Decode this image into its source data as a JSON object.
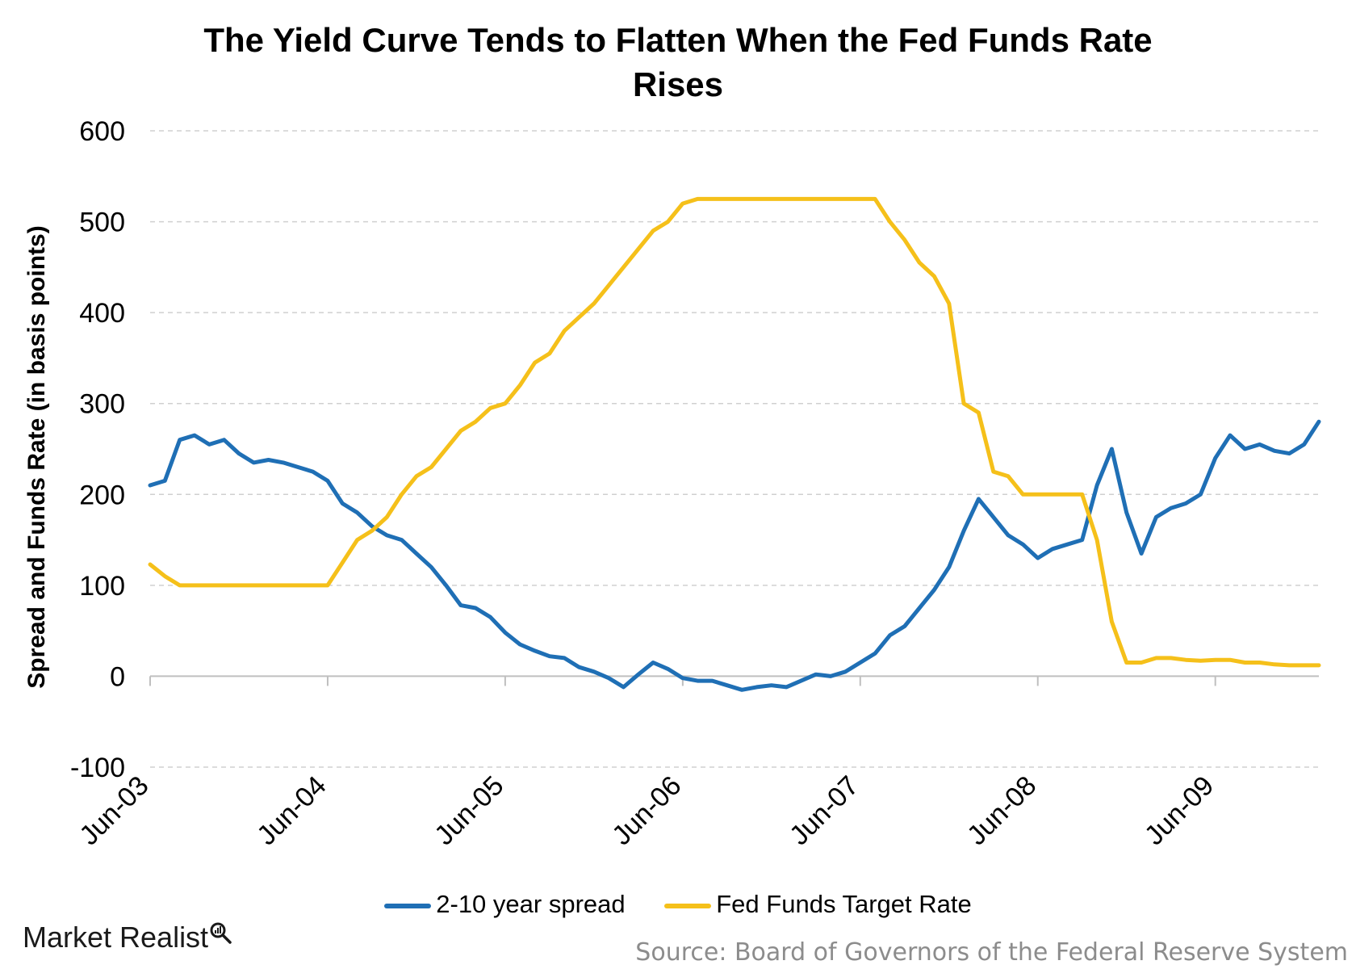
{
  "chart_data": {
    "type": "line",
    "title_lines": [
      "The Yield Curve Tends to Flatten When the Fed Funds Rate",
      "Rises"
    ],
    "ylabel": "Spread and Funds Rate (in basis points)",
    "xlabel": "",
    "y_ticks": [
      "600",
      "500",
      "400",
      "300",
      "200",
      "100",
      "0",
      "-100"
    ],
    "ylim": [
      -100,
      600
    ],
    "x_ticks": [
      "Jun-03",
      "Jun-04",
      "Jun-05",
      "Jun-06",
      "Jun-07",
      "Jun-08",
      "Jun-09"
    ],
    "x_tick_dates": [
      "2003-06",
      "2004-06",
      "2005-06",
      "2006-06",
      "2007-06",
      "2008-06",
      "2009-06"
    ],
    "xlim": [
      "2003-06",
      "2010-01"
    ],
    "grid": "horizontal dashed",
    "legend_position": "bottom",
    "series": [
      {
        "name": "2-10 year spread",
        "color": "#1f6fb5",
        "points": [
          [
            "2003-06",
            210
          ],
          [
            "2003-07",
            215
          ],
          [
            "2003-08",
            260
          ],
          [
            "2003-09",
            265
          ],
          [
            "2003-10",
            255
          ],
          [
            "2003-11",
            260
          ],
          [
            "2003-12",
            245
          ],
          [
            "2004-01",
            235
          ],
          [
            "2004-02",
            238
          ],
          [
            "2004-03",
            235
          ],
          [
            "2004-04",
            230
          ],
          [
            "2004-05",
            225
          ],
          [
            "2004-06",
            215
          ],
          [
            "2004-07",
            190
          ],
          [
            "2004-08",
            180
          ],
          [
            "2004-09",
            165
          ],
          [
            "2004-10",
            155
          ],
          [
            "2004-11",
            150
          ],
          [
            "2004-12",
            135
          ],
          [
            "2005-01",
            120
          ],
          [
            "2005-02",
            100
          ],
          [
            "2005-03",
            78
          ],
          [
            "2005-04",
            75
          ],
          [
            "2005-05",
            65
          ],
          [
            "2005-06",
            48
          ],
          [
            "2005-07",
            35
          ],
          [
            "2005-08",
            28
          ],
          [
            "2005-09",
            22
          ],
          [
            "2005-10",
            20
          ],
          [
            "2005-11",
            10
          ],
          [
            "2005-12",
            5
          ],
          [
            "2006-01",
            -2
          ],
          [
            "2006-02",
            -12
          ],
          [
            "2006-03",
            2
          ],
          [
            "2006-04",
            15
          ],
          [
            "2006-05",
            8
          ],
          [
            "2006-06",
            -2
          ],
          [
            "2006-07",
            -5
          ],
          [
            "2006-08",
            -5
          ],
          [
            "2006-09",
            -10
          ],
          [
            "2006-10",
            -15
          ],
          [
            "2006-11",
            -12
          ],
          [
            "2006-12",
            -10
          ],
          [
            "2007-01",
            -12
          ],
          [
            "2007-02",
            -5
          ],
          [
            "2007-03",
            2
          ],
          [
            "2007-04",
            0
          ],
          [
            "2007-05",
            5
          ],
          [
            "2007-06",
            15
          ],
          [
            "2007-07",
            25
          ],
          [
            "2007-08",
            45
          ],
          [
            "2007-09",
            55
          ],
          [
            "2007-10",
            75
          ],
          [
            "2007-11",
            95
          ],
          [
            "2007-12",
            120
          ],
          [
            "2008-01",
            160
          ],
          [
            "2008-02",
            195
          ],
          [
            "2008-03",
            175
          ],
          [
            "2008-04",
            155
          ],
          [
            "2008-05",
            145
          ],
          [
            "2008-06",
            130
          ],
          [
            "2008-07",
            140
          ],
          [
            "2008-08",
            145
          ],
          [
            "2008-09",
            150
          ],
          [
            "2008-10",
            210
          ],
          [
            "2008-11",
            250
          ],
          [
            "2008-12",
            180
          ],
          [
            "2009-01",
            135
          ],
          [
            "2009-02",
            175
          ],
          [
            "2009-03",
            185
          ],
          [
            "2009-04",
            190
          ],
          [
            "2009-05",
            200
          ],
          [
            "2009-06",
            240
          ],
          [
            "2009-07",
            265
          ],
          [
            "2009-08",
            250
          ],
          [
            "2009-09",
            255
          ],
          [
            "2009-10",
            248
          ],
          [
            "2009-11",
            245
          ],
          [
            "2009-12",
            255
          ],
          [
            "2010-01",
            280
          ]
        ]
      },
      {
        "name": "Fed Funds Target Rate",
        "color": "#f5c01a",
        "points": [
          [
            "2003-06",
            123
          ],
          [
            "2003-07",
            110
          ],
          [
            "2003-08",
            100
          ],
          [
            "2003-09",
            100
          ],
          [
            "2003-10",
            100
          ],
          [
            "2003-11",
            100
          ],
          [
            "2003-12",
            100
          ],
          [
            "2004-01",
            100
          ],
          [
            "2004-02",
            100
          ],
          [
            "2004-03",
            100
          ],
          [
            "2004-04",
            100
          ],
          [
            "2004-05",
            100
          ],
          [
            "2004-06",
            100
          ],
          [
            "2004-07",
            125
          ],
          [
            "2004-08",
            150
          ],
          [
            "2004-09",
            160
          ],
          [
            "2004-10",
            175
          ],
          [
            "2004-11",
            200
          ],
          [
            "2004-12",
            220
          ],
          [
            "2005-01",
            230
          ],
          [
            "2005-02",
            250
          ],
          [
            "2005-03",
            270
          ],
          [
            "2005-04",
            280
          ],
          [
            "2005-05",
            295
          ],
          [
            "2005-06",
            300
          ],
          [
            "2005-07",
            320
          ],
          [
            "2005-08",
            345
          ],
          [
            "2005-09",
            355
          ],
          [
            "2005-10",
            380
          ],
          [
            "2005-11",
            395
          ],
          [
            "2005-12",
            410
          ],
          [
            "2006-01",
            430
          ],
          [
            "2006-02",
            450
          ],
          [
            "2006-03",
            470
          ],
          [
            "2006-04",
            490
          ],
          [
            "2006-05",
            500
          ],
          [
            "2006-06",
            520
          ],
          [
            "2006-07",
            525
          ],
          [
            "2006-08",
            525
          ],
          [
            "2006-09",
            525
          ],
          [
            "2006-10",
            525
          ],
          [
            "2006-11",
            525
          ],
          [
            "2006-12",
            525
          ],
          [
            "2007-01",
            525
          ],
          [
            "2007-02",
            525
          ],
          [
            "2007-03",
            525
          ],
          [
            "2007-04",
            525
          ],
          [
            "2007-05",
            525
          ],
          [
            "2007-06",
            525
          ],
          [
            "2007-07",
            525
          ],
          [
            "2007-08",
            500
          ],
          [
            "2007-09",
            480
          ],
          [
            "2007-10",
            455
          ],
          [
            "2007-11",
            440
          ],
          [
            "2007-12",
            410
          ],
          [
            "2008-01",
            300
          ],
          [
            "2008-02",
            290
          ],
          [
            "2008-03",
            225
          ],
          [
            "2008-04",
            220
          ],
          [
            "2008-05",
            200
          ],
          [
            "2008-06",
            200
          ],
          [
            "2008-07",
            200
          ],
          [
            "2008-08",
            200
          ],
          [
            "2008-09",
            200
          ],
          [
            "2008-10",
            150
          ],
          [
            "2008-11",
            60
          ],
          [
            "2008-12",
            15
          ],
          [
            "2009-01",
            15
          ],
          [
            "2009-02",
            20
          ],
          [
            "2009-03",
            20
          ],
          [
            "2009-04",
            18
          ],
          [
            "2009-05",
            17
          ],
          [
            "2009-06",
            18
          ],
          [
            "2009-07",
            18
          ],
          [
            "2009-08",
            15
          ],
          [
            "2009-09",
            15
          ],
          [
            "2009-10",
            13
          ],
          [
            "2009-11",
            12
          ],
          [
            "2009-12",
            12
          ],
          [
            "2010-01",
            12
          ]
        ]
      }
    ]
  },
  "branding": {
    "logo_text": "Market Realist",
    "logo_icon": "magnifier-chart-icon"
  },
  "source": "Source: Board of Governors of the Federal Reserve System"
}
